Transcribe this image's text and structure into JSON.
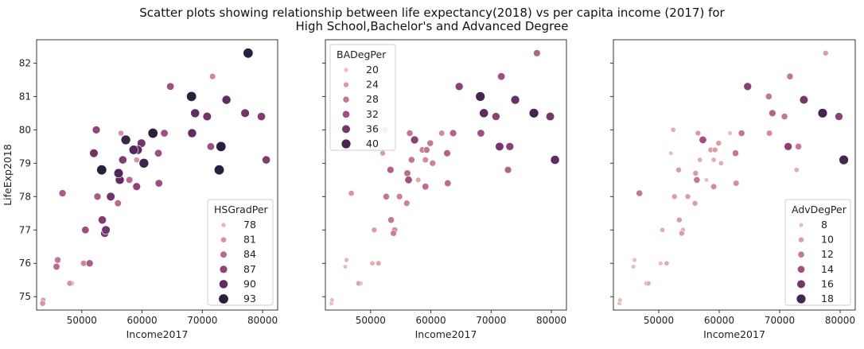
{
  "figure": {
    "title_line1": "Scatter plots showing relationship between life expectancy(2018) vs per capita income (2017) for",
    "title_line2": "High School,Bachelor's and Advanced Degree"
  },
  "colors": {
    "palette_light": "#f3cfc2",
    "palette_dark": "#2c1e3d"
  },
  "chart_data": [
    {
      "type": "scatter",
      "xlabel": "Income2017",
      "ylabel": "LifeExp2018",
      "xlim": [
        42500,
        82500
      ],
      "ylim": [
        74.6,
        82.7
      ],
      "xticks": [
        50000,
        60000,
        70000,
        80000
      ],
      "yticks": [
        75,
        76,
        77,
        78,
        79,
        80,
        81,
        82
      ],
      "grid": false,
      "legend": {
        "title": "HSGradPer",
        "placement": "lower-right",
        "entries": [
          78,
          81,
          84,
          87,
          90,
          93
        ]
      },
      "hue_range": [
        76,
        93
      ],
      "points": [
        {
          "x": 43500,
          "y": 74.8,
          "hue": 81
        },
        {
          "x": 43600,
          "y": 74.9,
          "hue": 80
        },
        {
          "x": 45800,
          "y": 75.9,
          "hue": 84
        },
        {
          "x": 46000,
          "y": 76.1,
          "hue": 83
        },
        {
          "x": 46800,
          "y": 78.1,
          "hue": 85
        },
        {
          "x": 48000,
          "y": 75.4,
          "hue": 81
        },
        {
          "x": 48300,
          "y": 75.4,
          "hue": 80
        },
        {
          "x": 50300,
          "y": 76.0,
          "hue": 82
        },
        {
          "x": 50600,
          "y": 77.0,
          "hue": 86
        },
        {
          "x": 51300,
          "y": 76.0,
          "hue": 85
        },
        {
          "x": 52000,
          "y": 79.3,
          "hue": 89
        },
        {
          "x": 52400,
          "y": 80.0,
          "hue": 87
        },
        {
          "x": 52600,
          "y": 78.0,
          "hue": 85
        },
        {
          "x": 53300,
          "y": 78.8,
          "hue": 93
        },
        {
          "x": 53400,
          "y": 77.3,
          "hue": 88
        },
        {
          "x": 53800,
          "y": 76.9,
          "hue": 88
        },
        {
          "x": 54000,
          "y": 77.0,
          "hue": 89
        },
        {
          "x": 54800,
          "y": 78.0,
          "hue": 89
        },
        {
          "x": 56000,
          "y": 77.8,
          "hue": 84
        },
        {
          "x": 56100,
          "y": 78.7,
          "hue": 91
        },
        {
          "x": 56300,
          "y": 78.5,
          "hue": 90
        },
        {
          "x": 56500,
          "y": 79.9,
          "hue": 81
        },
        {
          "x": 56800,
          "y": 79.1,
          "hue": 88
        },
        {
          "x": 57300,
          "y": 79.7,
          "hue": 92
        },
        {
          "x": 57900,
          "y": 78.5,
          "hue": 84
        },
        {
          "x": 58600,
          "y": 79.4,
          "hue": 91
        },
        {
          "x": 59100,
          "y": 79.1,
          "hue": 81
        },
        {
          "x": 59100,
          "y": 78.3,
          "hue": 87
        },
        {
          "x": 59300,
          "y": 79.4,
          "hue": 90
        },
        {
          "x": 59900,
          "y": 79.6,
          "hue": 89
        },
        {
          "x": 60300,
          "y": 79.0,
          "hue": 92
        },
        {
          "x": 61800,
          "y": 79.9,
          "hue": 93
        },
        {
          "x": 62700,
          "y": 79.3,
          "hue": 86
        },
        {
          "x": 62800,
          "y": 78.4,
          "hue": 86
        },
        {
          "x": 63700,
          "y": 79.9,
          "hue": 86
        },
        {
          "x": 64700,
          "y": 81.3,
          "hue": 86
        },
        {
          "x": 68200,
          "y": 81.0,
          "hue": 93
        },
        {
          "x": 68300,
          "y": 79.9,
          "hue": 90
        },
        {
          "x": 68800,
          "y": 80.5,
          "hue": 90
        },
        {
          "x": 70800,
          "y": 80.4,
          "hue": 89
        },
        {
          "x": 71400,
          "y": 79.5,
          "hue": 86
        },
        {
          "x": 71700,
          "y": 81.6,
          "hue": 82
        },
        {
          "x": 72800,
          "y": 78.8,
          "hue": 93
        },
        {
          "x": 73100,
          "y": 79.5,
          "hue": 93
        },
        {
          "x": 74000,
          "y": 80.9,
          "hue": 90
        },
        {
          "x": 77100,
          "y": 80.5,
          "hue": 89
        },
        {
          "x": 77600,
          "y": 82.3,
          "hue": 93
        },
        {
          "x": 79800,
          "y": 80.4,
          "hue": 88
        },
        {
          "x": 80600,
          "y": 79.1,
          "hue": 88
        }
      ]
    },
    {
      "type": "scatter",
      "xlabel": "Income2017",
      "ylabel": "",
      "xlim": [
        42500,
        82500
      ],
      "ylim": [
        74.6,
        82.7
      ],
      "xticks": [
        50000,
        60000,
        70000,
        80000
      ],
      "yticks": [
        75,
        76,
        77,
        78,
        79,
        80,
        81,
        82
      ],
      "grid": false,
      "legend": {
        "title": "BADegPer",
        "placement": "upper-left",
        "entries": [
          20,
          24,
          28,
          32,
          36,
          40
        ]
      },
      "hue_range": [
        18,
        42
      ],
      "points": [
        {
          "x": 43500,
          "y": 74.8,
          "hue": 20
        },
        {
          "x": 43600,
          "y": 74.9,
          "hue": 20
        },
        {
          "x": 45800,
          "y": 75.9,
          "hue": 20
        },
        {
          "x": 46000,
          "y": 76.1,
          "hue": 21
        },
        {
          "x": 46800,
          "y": 78.1,
          "hue": 25
        },
        {
          "x": 48000,
          "y": 75.4,
          "hue": 23
        },
        {
          "x": 48300,
          "y": 75.4,
          "hue": 22
        },
        {
          "x": 50300,
          "y": 76.0,
          "hue": 22
        },
        {
          "x": 50600,
          "y": 77.0,
          "hue": 24
        },
        {
          "x": 51300,
          "y": 76.0,
          "hue": 23
        },
        {
          "x": 52000,
          "y": 79.3,
          "hue": 24
        },
        {
          "x": 52400,
          "y": 80.0,
          "hue": 26
        },
        {
          "x": 52600,
          "y": 78.0,
          "hue": 28
        },
        {
          "x": 53300,
          "y": 78.8,
          "hue": 30
        },
        {
          "x": 53400,
          "y": 77.3,
          "hue": 28
        },
        {
          "x": 53800,
          "y": 76.9,
          "hue": 27
        },
        {
          "x": 54000,
          "y": 77.0,
          "hue": 26
        },
        {
          "x": 54800,
          "y": 78.0,
          "hue": 27
        },
        {
          "x": 56000,
          "y": 77.8,
          "hue": 27
        },
        {
          "x": 56100,
          "y": 78.7,
          "hue": 29
        },
        {
          "x": 56300,
          "y": 78.5,
          "hue": 32
        },
        {
          "x": 56500,
          "y": 79.9,
          "hue": 28
        },
        {
          "x": 56800,
          "y": 79.1,
          "hue": 28
        },
        {
          "x": 57300,
          "y": 79.7,
          "hue": 34
        },
        {
          "x": 57900,
          "y": 78.5,
          "hue": 23
        },
        {
          "x": 58600,
          "y": 79.4,
          "hue": 27
        },
        {
          "x": 59100,
          "y": 79.1,
          "hue": 26
        },
        {
          "x": 59100,
          "y": 78.3,
          "hue": 29
        },
        {
          "x": 59300,
          "y": 79.4,
          "hue": 28
        },
        {
          "x": 59900,
          "y": 79.6,
          "hue": 28
        },
        {
          "x": 60300,
          "y": 79.0,
          "hue": 27
        },
        {
          "x": 61800,
          "y": 79.9,
          "hue": 26
        },
        {
          "x": 62700,
          "y": 79.3,
          "hue": 30
        },
        {
          "x": 62800,
          "y": 78.4,
          "hue": 29
        },
        {
          "x": 63700,
          "y": 79.9,
          "hue": 30
        },
        {
          "x": 64700,
          "y": 81.3,
          "hue": 34
        },
        {
          "x": 68200,
          "y": 81.0,
          "hue": 40
        },
        {
          "x": 68300,
          "y": 79.9,
          "hue": 32
        },
        {
          "x": 68800,
          "y": 80.5,
          "hue": 38
        },
        {
          "x": 70800,
          "y": 80.4,
          "hue": 34
        },
        {
          "x": 71400,
          "y": 79.5,
          "hue": 36
        },
        {
          "x": 71700,
          "y": 81.6,
          "hue": 32
        },
        {
          "x": 72800,
          "y": 78.8,
          "hue": 30
        },
        {
          "x": 73100,
          "y": 79.5,
          "hue": 34
        },
        {
          "x": 74000,
          "y": 80.9,
          "hue": 37
        },
        {
          "x": 77100,
          "y": 80.5,
          "hue": 40
        },
        {
          "x": 77600,
          "y": 82.3,
          "hue": 30
        },
        {
          "x": 79800,
          "y": 80.4,
          "hue": 36
        },
        {
          "x": 80600,
          "y": 79.1,
          "hue": 38
        }
      ]
    },
    {
      "type": "scatter",
      "xlabel": "Income2017",
      "ylabel": "",
      "xlim": [
        42500,
        82500
      ],
      "ylim": [
        74.6,
        82.7
      ],
      "xticks": [
        50000,
        60000,
        70000,
        80000
      ],
      "yticks": [
        75,
        76,
        77,
        78,
        79,
        80,
        81,
        82
      ],
      "grid": false,
      "legend": {
        "title": "AdvDegPer",
        "placement": "lower-right",
        "entries": [
          8,
          10,
          12,
          14,
          16,
          18
        ]
      },
      "hue_range": [
        7,
        19
      ],
      "points": [
        {
          "x": 43500,
          "y": 74.8,
          "hue": 8
        },
        {
          "x": 43600,
          "y": 74.9,
          "hue": 8
        },
        {
          "x": 45800,
          "y": 75.9,
          "hue": 8
        },
        {
          "x": 46000,
          "y": 76.1,
          "hue": 8
        },
        {
          "x": 46800,
          "y": 78.1,
          "hue": 12
        },
        {
          "x": 48000,
          "y": 75.4,
          "hue": 9
        },
        {
          "x": 48300,
          "y": 75.4,
          "hue": 9
        },
        {
          "x": 50300,
          "y": 76.0,
          "hue": 8
        },
        {
          "x": 50600,
          "y": 77.0,
          "hue": 9
        },
        {
          "x": 51300,
          "y": 76.0,
          "hue": 9
        },
        {
          "x": 52000,
          "y": 79.3,
          "hue": 8
        },
        {
          "x": 52400,
          "y": 80.0,
          "hue": 9
        },
        {
          "x": 52600,
          "y": 78.0,
          "hue": 10
        },
        {
          "x": 53300,
          "y": 78.8,
          "hue": 10
        },
        {
          "x": 53400,
          "y": 77.3,
          "hue": 10
        },
        {
          "x": 53800,
          "y": 76.9,
          "hue": 10
        },
        {
          "x": 54000,
          "y": 77.0,
          "hue": 9
        },
        {
          "x": 54800,
          "y": 78.0,
          "hue": 10
        },
        {
          "x": 56000,
          "y": 77.8,
          "hue": 10
        },
        {
          "x": 56100,
          "y": 78.7,
          "hue": 10
        },
        {
          "x": 56300,
          "y": 78.5,
          "hue": 12
        },
        {
          "x": 56500,
          "y": 79.9,
          "hue": 10
        },
        {
          "x": 56800,
          "y": 79.1,
          "hue": 9
        },
        {
          "x": 57300,
          "y": 79.7,
          "hue": 14
        },
        {
          "x": 57900,
          "y": 78.5,
          "hue": 8
        },
        {
          "x": 58600,
          "y": 79.4,
          "hue": 10
        },
        {
          "x": 59100,
          "y": 79.1,
          "hue": 9
        },
        {
          "x": 59100,
          "y": 78.3,
          "hue": 11
        },
        {
          "x": 59300,
          "y": 79.4,
          "hue": 10
        },
        {
          "x": 59900,
          "y": 79.6,
          "hue": 10
        },
        {
          "x": 60300,
          "y": 79.0,
          "hue": 9
        },
        {
          "x": 61800,
          "y": 79.9,
          "hue": 8
        },
        {
          "x": 62700,
          "y": 79.3,
          "hue": 12
        },
        {
          "x": 62800,
          "y": 78.4,
          "hue": 11
        },
        {
          "x": 63700,
          "y": 79.9,
          "hue": 12
        },
        {
          "x": 64700,
          "y": 81.3,
          "hue": 15
        },
        {
          "x": 68200,
          "y": 81.0,
          "hue": 12
        },
        {
          "x": 68300,
          "y": 79.9,
          "hue": 11
        },
        {
          "x": 68800,
          "y": 80.5,
          "hue": 13
        },
        {
          "x": 70800,
          "y": 80.4,
          "hue": 12
        },
        {
          "x": 71400,
          "y": 79.5,
          "hue": 15
        },
        {
          "x": 71700,
          "y": 81.6,
          "hue": 12
        },
        {
          "x": 72800,
          "y": 78.8,
          "hue": 9
        },
        {
          "x": 73100,
          "y": 79.5,
          "hue": 12
        },
        {
          "x": 74000,
          "y": 80.9,
          "hue": 16
        },
        {
          "x": 77100,
          "y": 80.5,
          "hue": 18
        },
        {
          "x": 77600,
          "y": 82.3,
          "hue": 10
        },
        {
          "x": 79800,
          "y": 80.4,
          "hue": 15
        },
        {
          "x": 80600,
          "y": 79.1,
          "hue": 18
        }
      ]
    }
  ]
}
